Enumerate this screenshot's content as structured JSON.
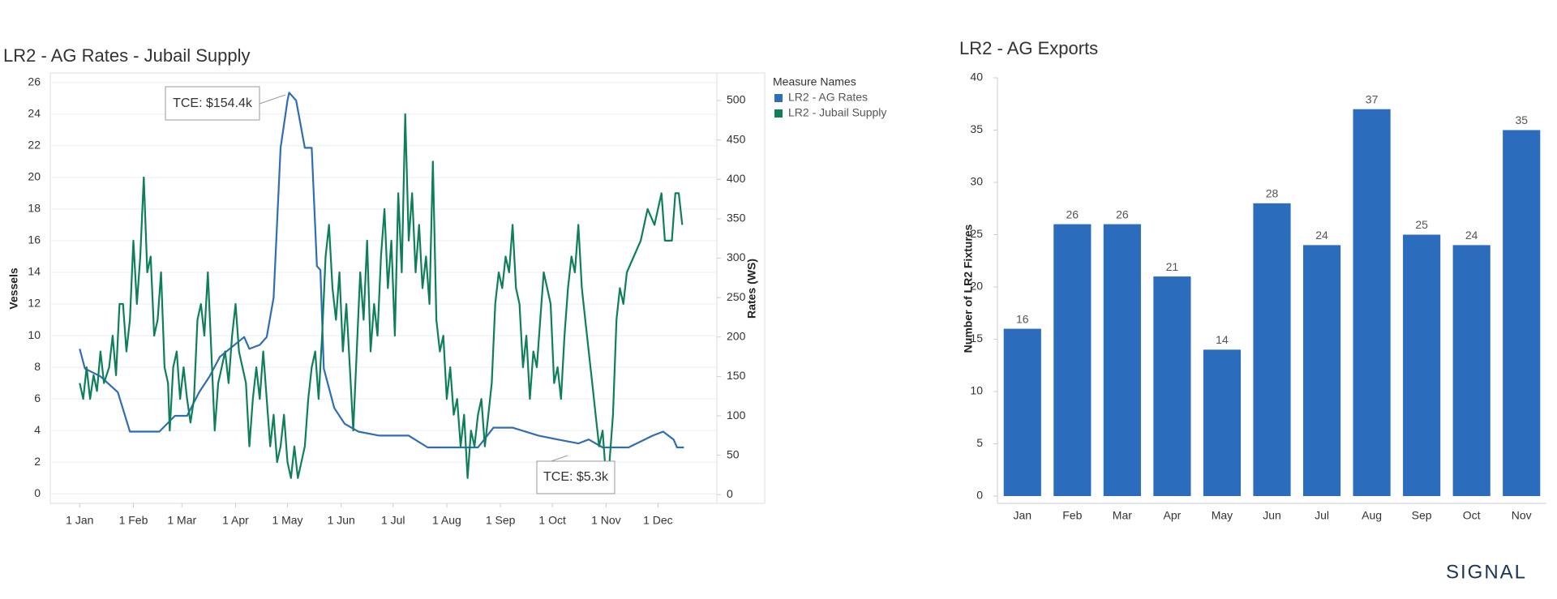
{
  "chart_data": [
    {
      "type": "line",
      "title": "LR2 - AG Rates - Jubail Supply",
      "ylabel": "Vessels",
      "y2label": "Rates (WS)",
      "legend_title": "Measure Names",
      "legend": "right",
      "xlim": [
        -17,
        368
      ],
      "xticks": [
        {
          "value": 0,
          "label": "1 Jan"
        },
        {
          "value": 31,
          "label": "1 Feb"
        },
        {
          "value": 59,
          "label": "1 Mar"
        },
        {
          "value": 90,
          "label": "1 Apr"
        },
        {
          "value": 120,
          "label": "1 May"
        },
        {
          "value": 151,
          "label": "1 Jun"
        },
        {
          "value": 181,
          "label": "1 Jul"
        },
        {
          "value": 212,
          "label": "1 Aug"
        },
        {
          "value": 243,
          "label": "1 Sep"
        },
        {
          "value": 273,
          "label": "1 Oct"
        },
        {
          "value": 304,
          "label": "1 Nov"
        },
        {
          "value": 334,
          "label": "1 Dec"
        }
      ],
      "ylim": [
        -0.6,
        26.6
      ],
      "yticks": [
        0,
        2,
        4,
        6,
        8,
        10,
        12,
        14,
        16,
        18,
        20,
        22,
        24,
        26
      ],
      "y2lim": [
        -11,
        535
      ],
      "y2ticks": [
        0,
        50,
        100,
        150,
        200,
        250,
        300,
        350,
        400,
        450,
        500
      ],
      "grid": true,
      "annotations": [
        "TCE: $154.4k",
        "TCE: $5.3k"
      ],
      "series": [
        {
          "name": "LR2 - AG Rates",
          "color": "#2f6db5",
          "axis": "y2",
          "x": [
            0,
            3,
            12,
            22,
            29,
            46,
            55,
            62,
            69,
            75,
            81,
            95,
            98,
            104,
            108,
            112,
            116,
            120,
            121,
            125,
            130,
            134,
            137,
            139,
            141,
            147,
            153,
            161,
            173,
            190,
            201,
            230,
            239,
            250,
            265,
            276,
            288,
            294,
            302,
            317,
            331,
            337,
            343,
            345,
            349
          ],
          "values": [
            185,
            160,
            150,
            130,
            80,
            80,
            100,
            100,
            130,
            150,
            175,
            200,
            185,
            190,
            200,
            250,
            440,
            500,
            510,
            500,
            440,
            440,
            290,
            285,
            160,
            110,
            90,
            80,
            75,
            75,
            60,
            60,
            85,
            85,
            75,
            70,
            65,
            70,
            60,
            60,
            75,
            80,
            70,
            60,
            60
          ]
        },
        {
          "name": "LR2 - Jubail Supply",
          "color": "#0e7f5a",
          "x": [
            0,
            2,
            4,
            6,
            8,
            10,
            12,
            14,
            17,
            19,
            21,
            23,
            25,
            27,
            29,
            31,
            33,
            35,
            37,
            39,
            41,
            43,
            45,
            47,
            49,
            51,
            52,
            54,
            56,
            58,
            60,
            62,
            64,
            66,
            68,
            70,
            72,
            74,
            76,
            78,
            80,
            82,
            84,
            86,
            88,
            90,
            92,
            94,
            96,
            98,
            100,
            102,
            104,
            106,
            108,
            110,
            112,
            114,
            116,
            118,
            120,
            122,
            124,
            126,
            128,
            130,
            132,
            134,
            136,
            138,
            140,
            142,
            144,
            146,
            148,
            150,
            152,
            154,
            156,
            158,
            160,
            162,
            164,
            166,
            168,
            170,
            172,
            174,
            176,
            178,
            180,
            182,
            184,
            186,
            188,
            190,
            192,
            194,
            196,
            198,
            200,
            202,
            204,
            206,
            208,
            210,
            212,
            214,
            216,
            218,
            220,
            222,
            224,
            226,
            228,
            230,
            232,
            234,
            236,
            238,
            240,
            242,
            244,
            246,
            248,
            250,
            252,
            254,
            256,
            258,
            260,
            262,
            264,
            266,
            268,
            270,
            272,
            274,
            276,
            278,
            280,
            282,
            284,
            286,
            288,
            290,
            292,
            294,
            296,
            298,
            300,
            302,
            304,
            306,
            308,
            310,
            312,
            314,
            316,
            320,
            324,
            328,
            332,
            336,
            338,
            342,
            344,
            346,
            348
          ],
          "values": [
            7,
            6,
            8,
            6,
            7.5,
            6.5,
            9,
            7,
            8,
            10,
            7.5,
            12,
            12,
            9,
            11,
            16,
            12,
            15,
            20,
            14,
            15,
            10,
            11,
            14,
            8,
            7,
            4,
            8,
            9,
            6,
            8,
            6,
            4.5,
            6,
            11,
            12,
            10,
            14,
            9,
            4,
            7,
            8,
            9,
            7,
            10,
            12,
            9,
            8,
            7,
            3,
            6,
            8,
            6,
            9,
            6,
            3,
            5,
            2,
            3,
            5,
            2,
            1,
            3,
            1,
            2,
            3,
            6,
            8,
            9,
            6,
            10,
            15,
            17,
            13,
            11,
            14,
            9,
            12,
            8,
            4,
            9,
            14,
            11,
            16,
            9,
            12,
            10,
            15,
            18,
            13,
            16,
            10,
            19,
            14,
            24,
            16,
            19,
            14,
            17,
            13,
            15,
            12,
            21,
            11,
            9,
            10,
            6,
            8,
            5,
            6,
            3,
            5,
            1,
            4,
            3,
            5,
            6,
            3,
            5,
            7,
            12,
            14,
            13,
            15,
            14,
            17,
            13,
            12,
            8,
            10,
            6,
            9,
            8,
            11,
            14,
            13,
            12,
            7,
            8,
            6,
            10,
            13,
            15,
            14,
            17,
            13,
            11,
            9,
            7,
            5,
            3,
            4,
            1,
            2,
            5,
            11,
            13,
            12,
            14,
            15,
            16,
            18,
            17,
            19,
            16,
            16,
            19,
            19,
            17
          ]
        }
      ]
    },
    {
      "type": "bar",
      "title": "LR2 - AG Exports",
      "ylabel": "Number of LR2 Fixtures",
      "categories": [
        "Jan",
        "Feb",
        "Mar",
        "Apr",
        "May",
        "Jun",
        "Jul",
        "Aug",
        "Sep",
        "Oct",
        "Nov"
      ],
      "values": [
        16,
        26,
        26,
        21,
        14,
        28,
        24,
        37,
        25,
        24,
        35
      ],
      "color": "#2c6cbc",
      "ylim": [
        0,
        40
      ],
      "yticks": [
        0,
        5,
        10,
        15,
        20,
        25,
        30,
        35,
        40
      ],
      "grid": false
    }
  ],
  "logo": "SIGNAL"
}
